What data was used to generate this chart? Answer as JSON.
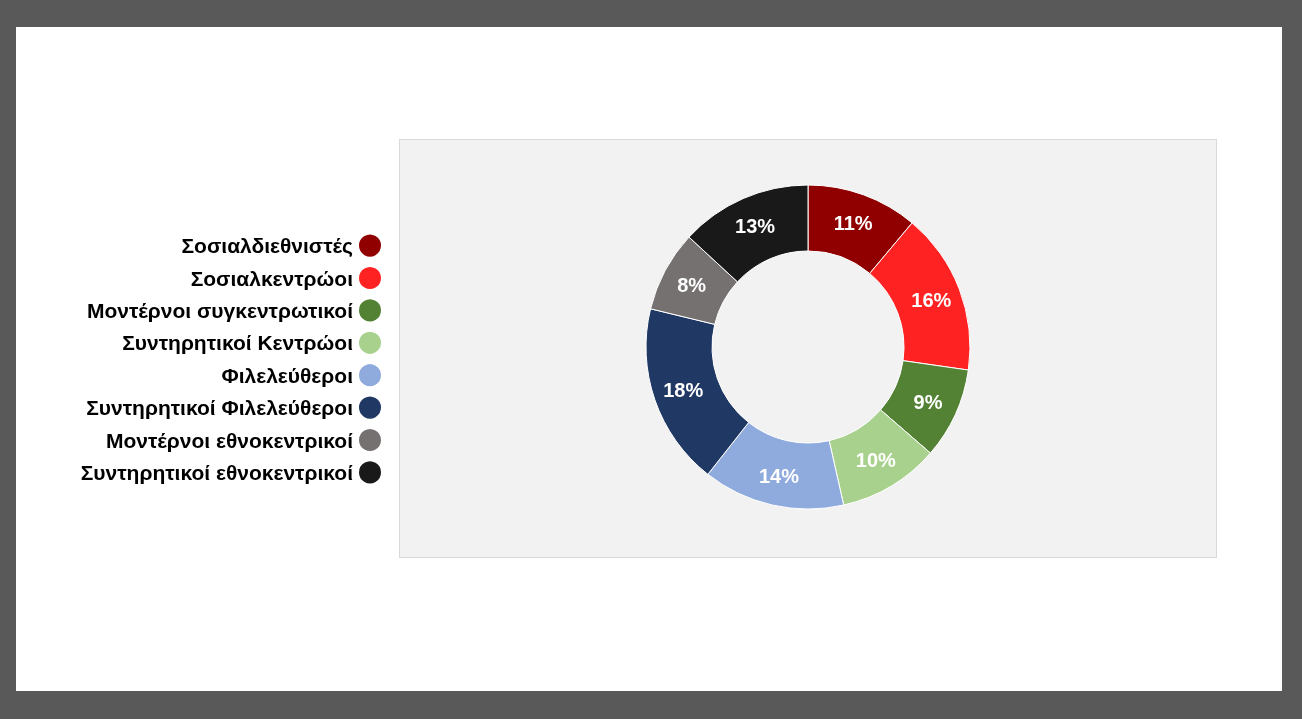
{
  "chart_data": {
    "type": "donut",
    "categories": [
      "Σοσιαλδιεθνιστές",
      "Σοσιαλκεντρώοι",
      "Μοντέρνοι συγκεντρωτικοί",
      "Συντηρητικοί Κεντρώοι",
      "Φιλελεύθεροι",
      "Συντηρητικοί Φιλελεύθεροι",
      "Μοντέρνοι εθνοκεντρικοί",
      "Συντηρητικοί εθνοκεντρικοί"
    ],
    "values": [
      11,
      16,
      9,
      10,
      14,
      18,
      8,
      13
    ],
    "value_labels": [
      "11%",
      "16%",
      "9%",
      "10%",
      "14%",
      "18%",
      "8%",
      "13%"
    ],
    "colors": [
      "#900000",
      "#ff2222",
      "#548235",
      "#a9d18e",
      "#8faadc",
      "#1f3864",
      "#767171",
      "#191919"
    ],
    "legend": "left"
  }
}
